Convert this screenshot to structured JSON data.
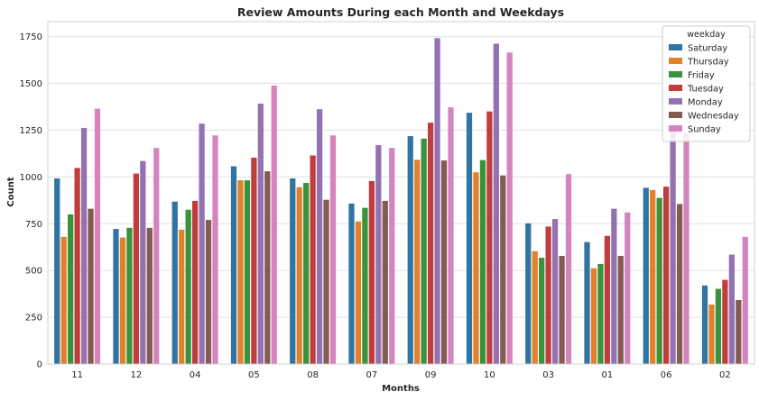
{
  "chart_data": {
    "type": "bar",
    "title": "Review Amounts During each Month and Weekdays",
    "xlabel": "Months",
    "ylabel": "Count",
    "ylim": [
      0,
      1830
    ],
    "yticks": [
      0,
      250,
      500,
      750,
      1000,
      1250,
      1500,
      1750
    ],
    "grid": true,
    "legend_title": "weekday",
    "legend_position": "top-right",
    "categories": [
      "11",
      "12",
      "04",
      "05",
      "08",
      "07",
      "09",
      "10",
      "03",
      "01",
      "06",
      "02"
    ],
    "series": [
      {
        "name": "Saturday",
        "color": "#3274a1",
        "values": [
          992,
          722,
          868,
          1057,
          992,
          858,
          1218,
          1343,
          752,
          652,
          942,
          420
        ]
      },
      {
        "name": "Thursday",
        "color": "#e1812c",
        "values": [
          680,
          676,
          718,
          982,
          945,
          762,
          1092,
          1025,
          603,
          512,
          930,
          318
        ]
      },
      {
        "name": "Friday",
        "color": "#3a923a",
        "values": [
          800,
          728,
          825,
          982,
          968,
          835,
          1205,
          1090,
          568,
          535,
          888,
          402
        ]
      },
      {
        "name": "Tuesday",
        "color": "#c03d3e",
        "values": [
          1048,
          1018,
          872,
          1103,
          1115,
          978,
          1290,
          1350,
          735,
          685,
          948,
          450
        ]
      },
      {
        "name": "Monday",
        "color": "#9372b2",
        "values": [
          1262,
          1085,
          1285,
          1392,
          1362,
          1170,
          1742,
          1712,
          775,
          830,
          1245,
          585
        ]
      },
      {
        "name": "Wednesday",
        "color": "#845b53",
        "values": [
          830,
          728,
          770,
          1030,
          878,
          872,
          1088,
          1008,
          578,
          578,
          855,
          342
        ]
      },
      {
        "name": "Sunday",
        "color": "#d684bd",
        "values": [
          1365,
          1155,
          1222,
          1488,
          1222,
          1155,
          1372,
          1665,
          1015,
          810,
          1235,
          680
        ]
      }
    ]
  }
}
